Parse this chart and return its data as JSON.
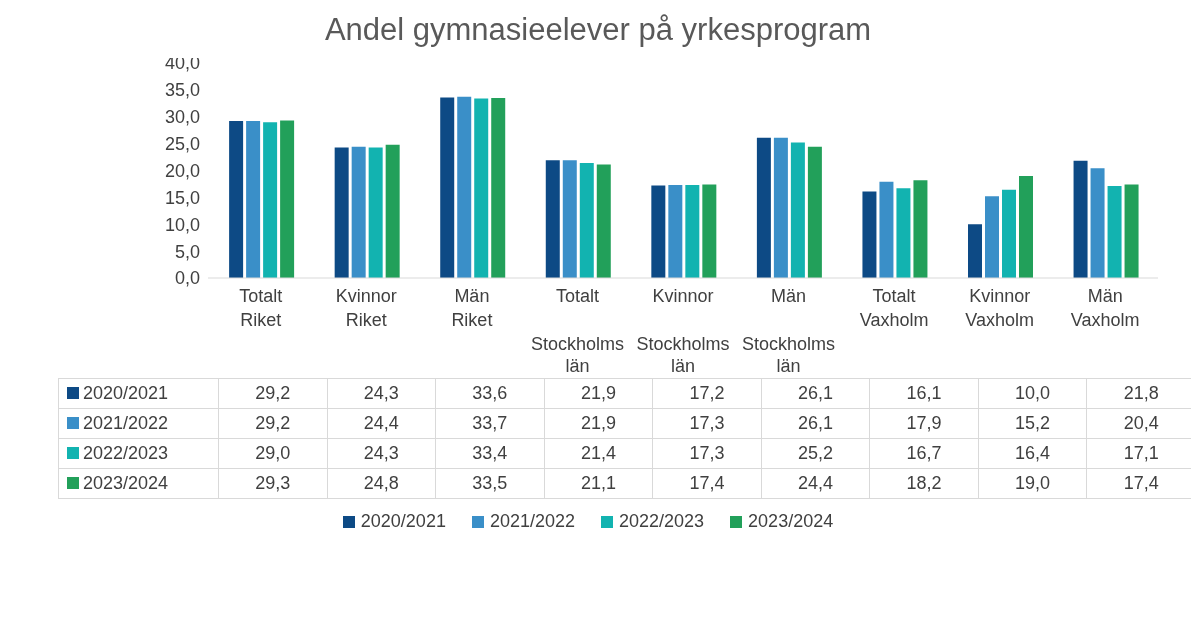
{
  "chart_data": {
    "type": "bar",
    "title": "Andel gymnasieelever på yrkesprogram",
    "categories": [
      "Totalt\nRiket",
      "Kvinnor\nRiket",
      "Män\nRiket",
      "Totalt\nStockholms\nlän",
      "Kvinnor\nStockholms\nlän",
      "Män\nStockholms\nlän",
      "Totalt\nVaxholm",
      "Kvinnor\nVaxholm",
      "Män\nVaxholm"
    ],
    "series": [
      {
        "name": "2020/2021",
        "color": "#0d4a85",
        "values": [
          29.2,
          24.3,
          33.6,
          21.9,
          17.2,
          26.1,
          16.1,
          10.0,
          21.8
        ],
        "value_labels": [
          "29,2",
          "24,3",
          "33,6",
          "21,9",
          "17,2",
          "26,1",
          "16,1",
          "10,0",
          "21,8"
        ]
      },
      {
        "name": "2021/2022",
        "color": "#3a8fc8",
        "values": [
          29.2,
          24.4,
          33.7,
          21.9,
          17.3,
          26.1,
          17.9,
          15.2,
          20.4
        ],
        "value_labels": [
          "29,2",
          "24,4",
          "33,7",
          "21,9",
          "17,3",
          "26,1",
          "17,9",
          "15,2",
          "20,4"
        ]
      },
      {
        "name": "2022/2023",
        "color": "#12b3b0",
        "values": [
          29.0,
          24.3,
          33.4,
          21.4,
          17.3,
          25.2,
          16.7,
          16.4,
          17.1
        ],
        "value_labels": [
          "29,0",
          "24,3",
          "33,4",
          "21,4",
          "17,3",
          "25,2",
          "16,7",
          "16,4",
          "17,1"
        ]
      },
      {
        "name": "2023/2024",
        "color": "#22a05a",
        "values": [
          29.3,
          24.8,
          33.5,
          21.1,
          17.4,
          24.4,
          18.2,
          19.0,
          17.4
        ],
        "value_labels": [
          "29,3",
          "24,8",
          "33,5",
          "21,1",
          "17,4",
          "24,4",
          "18,2",
          "19,0",
          "17,4"
        ]
      }
    ],
    "ylim": [
      0,
      40
    ],
    "yticks": [
      {
        "value": 0,
        "label": "0,0"
      },
      {
        "value": 5,
        "label": "5,0"
      },
      {
        "value": 10,
        "label": "10,0"
      },
      {
        "value": 15,
        "label": "15,0"
      },
      {
        "value": 20,
        "label": "20,0"
      },
      {
        "value": 25,
        "label": "25,0"
      },
      {
        "value": 30,
        "label": "30,0"
      },
      {
        "value": 35,
        "label": "35,0"
      },
      {
        "value": 40,
        "label": "40,0"
      }
    ],
    "grid": false,
    "legend": "bottom"
  }
}
